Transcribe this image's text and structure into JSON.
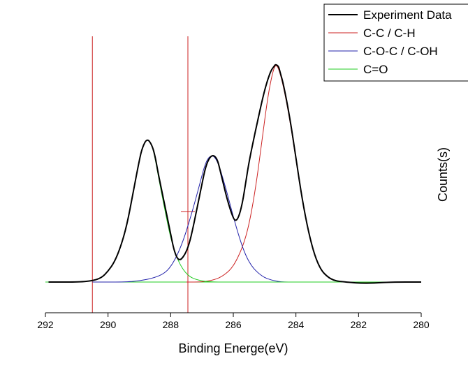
{
  "chart_data": {
    "type": "line",
    "title": "",
    "xlabel": "Binding Energe(eV)",
    "ylabel": "Counts(s)",
    "xlim": [
      292,
      280
    ],
    "x_reversed": true,
    "ylim": [
      -0.15,
      1.05
    ],
    "xticks": [
      292,
      290,
      288,
      286,
      284,
      282,
      280
    ],
    "grid": false,
    "legend": {
      "position": "top-right",
      "entries": [
        "Experiment Data",
        "C-C / C-H",
        "C-O-C / C-OH",
        "C=O"
      ]
    },
    "vertical_lines": [
      {
        "x": 290.5,
        "color": "#cc2222"
      },
      {
        "x": 287.45,
        "color": "#cc2222"
      }
    ],
    "series": [
      {
        "name": "Experiment Data",
        "color": "#000000",
        "x": [
          291.9,
          291.0,
          290.5,
          290.2,
          290.0,
          289.8,
          289.6,
          289.4,
          289.2,
          289.0,
          288.9,
          288.75,
          288.6,
          288.5,
          288.4,
          288.2,
          288.0,
          287.9,
          287.8,
          287.7,
          287.6,
          287.5,
          287.4,
          287.3,
          287.2,
          287.0,
          286.9,
          286.8,
          286.7,
          286.6,
          286.5,
          286.4,
          286.2,
          286.0,
          285.9,
          285.8,
          285.7,
          285.6,
          285.5,
          285.3,
          285.1,
          285.0,
          284.9,
          284.8,
          284.7,
          284.65,
          284.55,
          284.5,
          284.4,
          284.2,
          284.0,
          283.8,
          283.6,
          283.4,
          283.2,
          283.0,
          282.8,
          282.6,
          282.4,
          282.0,
          281.5,
          281.0,
          280.0
        ],
        "y": [
          0.0,
          0.0,
          0.005,
          0.02,
          0.05,
          0.09,
          0.16,
          0.26,
          0.41,
          0.56,
          0.62,
          0.66,
          0.63,
          0.58,
          0.5,
          0.36,
          0.22,
          0.15,
          0.11,
          0.1,
          0.115,
          0.14,
          0.18,
          0.24,
          0.31,
          0.45,
          0.52,
          0.56,
          0.58,
          0.58,
          0.56,
          0.5,
          0.38,
          0.29,
          0.28,
          0.31,
          0.37,
          0.46,
          0.55,
          0.69,
          0.82,
          0.88,
          0.93,
          0.97,
          0.99,
          1.0,
          0.99,
          0.96,
          0.91,
          0.76,
          0.57,
          0.38,
          0.23,
          0.12,
          0.055,
          0.025,
          0.008,
          0.003,
          0.0,
          -0.005,
          -0.005,
          0.0,
          0.0
        ]
      },
      {
        "name": "C-C / C-H",
        "color": "#cc2222",
        "x": [
          287.5,
          287.0,
          286.6,
          286.3,
          286.0,
          285.7,
          285.5,
          285.3,
          285.1,
          284.9,
          284.75,
          284.65,
          284.55,
          284.4,
          284.2,
          284.0,
          283.8,
          283.6,
          283.4,
          283.2,
          283.0,
          282.8,
          282.6,
          282.4,
          282.0,
          281.0,
          280.0
        ],
        "y": [
          0.0,
          0.0,
          0.01,
          0.03,
          0.07,
          0.16,
          0.26,
          0.42,
          0.63,
          0.85,
          0.96,
          1.0,
          0.98,
          0.9,
          0.75,
          0.56,
          0.38,
          0.23,
          0.12,
          0.055,
          0.025,
          0.008,
          0.003,
          0.0,
          -0.005,
          0.0,
          0.0
        ]
      },
      {
        "name": "C-O-C / C-OH",
        "color": "#2222aa",
        "x": [
          290.5,
          289.5,
          289.0,
          288.5,
          288.2,
          288.0,
          287.8,
          287.6,
          287.4,
          287.2,
          287.0,
          286.9,
          286.8,
          286.7,
          286.6,
          286.5,
          286.4,
          286.3,
          286.2,
          286.0,
          285.8,
          285.6,
          285.4,
          285.2,
          285.0,
          284.8,
          284.5,
          284.0
        ],
        "y": [
          0.0,
          0.0,
          0.005,
          0.02,
          0.04,
          0.07,
          0.12,
          0.19,
          0.28,
          0.38,
          0.49,
          0.54,
          0.57,
          0.58,
          0.575,
          0.55,
          0.51,
          0.46,
          0.41,
          0.3,
          0.2,
          0.12,
          0.07,
          0.04,
          0.02,
          0.01,
          0.0,
          0.0
        ]
      },
      {
        "name": "C=O",
        "color": "#22cc22",
        "x": [
          292.0,
          291.0,
          290.5,
          290.2,
          290.0,
          289.8,
          289.6,
          289.4,
          289.2,
          289.0,
          288.9,
          288.75,
          288.6,
          288.5,
          288.4,
          288.2,
          288.0,
          287.8,
          287.6,
          287.4,
          287.2,
          287.0,
          286.8,
          286.5,
          286.0,
          285.0,
          284.0,
          282.0,
          280.0
        ],
        "y": [
          0.0,
          0.0,
          0.005,
          0.02,
          0.05,
          0.09,
          0.16,
          0.26,
          0.41,
          0.56,
          0.62,
          0.66,
          0.63,
          0.57,
          0.49,
          0.34,
          0.2,
          0.11,
          0.055,
          0.025,
          0.012,
          0.005,
          0.002,
          0.0,
          0.0,
          0.0,
          0.0,
          0.0,
          0.0
        ]
      }
    ]
  }
}
